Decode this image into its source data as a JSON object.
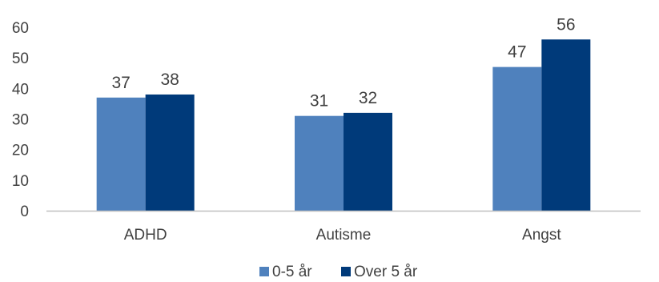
{
  "chart_data": {
    "type": "bar",
    "title": "",
    "xlabel": "",
    "ylabel": "",
    "ylim": [
      0,
      60
    ],
    "yticks": [
      0,
      10,
      20,
      30,
      40,
      50,
      60
    ],
    "grid": false,
    "legend_position": "bottom",
    "categories": [
      "ADHD",
      "Autisme",
      "Angst"
    ],
    "series": [
      {
        "name": "0-5 år",
        "values": [
          37,
          31,
          47
        ],
        "color": "#4F81BD"
      },
      {
        "name": "Over 5 år",
        "values": [
          38,
          32,
          56
        ],
        "color": "#003A7A"
      }
    ]
  },
  "colors": {
    "axis_line": "#BFBFBF",
    "text": "#404040"
  }
}
